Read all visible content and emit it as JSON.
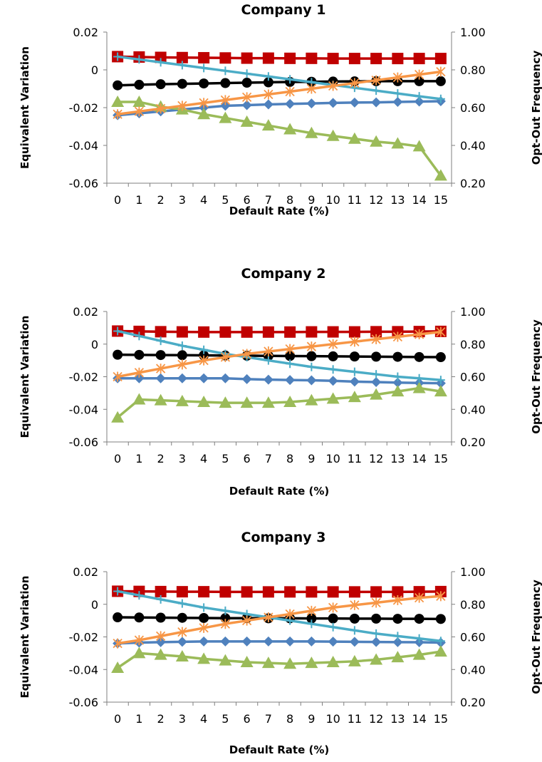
{
  "chart_data": [
    {
      "type": "line",
      "title": "Company 1",
      "xlabel": "Default Rate (%)",
      "ylabel": "Equivalent Variation",
      "y2label": "Opt-Out Frequency",
      "categories": [
        "0",
        "1",
        "2",
        "3",
        "4",
        "5",
        "6",
        "7",
        "8",
        "9",
        "10",
        "11",
        "12",
        "13",
        "14",
        "15"
      ],
      "ylim": [
        -0.06,
        0.02
      ],
      "yticks": [
        "0.02",
        "0",
        "-0.02",
        "-0.04",
        "-0.06"
      ],
      "y2lim": [
        0.2,
        1.0
      ],
      "y2ticks": [
        "1.00",
        "0.80",
        "0.60",
        "0.40",
        "0.20"
      ],
      "grid": false,
      "legend": "none",
      "series": [
        {
          "axis": "left",
          "color": "#4F81BD",
          "marker": "diamond",
          "values": [
            -0.024,
            -0.023,
            -0.022,
            -0.021,
            -0.02,
            -0.019,
            -0.0187,
            -0.0183,
            -0.018,
            -0.0178,
            -0.0175,
            -0.0173,
            -0.0172,
            -0.017,
            -0.0168,
            -0.0166
          ]
        },
        {
          "axis": "left",
          "color": "#C00000",
          "marker": "square",
          "values": [
            0.007,
            0.0068,
            0.0066,
            0.0065,
            0.0064,
            0.0063,
            0.0062,
            0.0062,
            0.0061,
            0.0061,
            0.006,
            0.006,
            0.006,
            0.006,
            0.006,
            0.006
          ]
        },
        {
          "axis": "left",
          "color": "#9BBB59",
          "marker": "triangle",
          "values": [
            -0.017,
            -0.017,
            -0.0195,
            -0.021,
            -0.0235,
            -0.0255,
            -0.0275,
            -0.0295,
            -0.0315,
            -0.0335,
            -0.035,
            -0.0365,
            -0.038,
            -0.039,
            -0.0405,
            -0.056
          ]
        },
        {
          "axis": "left",
          "color": "#000000",
          "marker": "circle",
          "values": [
            -0.0082,
            -0.0079,
            -0.0076,
            -0.0074,
            -0.0072,
            -0.007,
            -0.0068,
            -0.0066,
            -0.0064,
            -0.0063,
            -0.0062,
            -0.0061,
            -0.006,
            -0.006,
            -0.006,
            -0.006
          ]
        },
        {
          "axis": "right",
          "color": "#4BACC6",
          "marker": "plus",
          "values": [
            0.87,
            0.855,
            0.84,
            0.825,
            0.81,
            0.795,
            0.78,
            0.765,
            0.75,
            0.735,
            0.72,
            0.705,
            0.69,
            0.675,
            0.66,
            0.646
          ]
        },
        {
          "axis": "right",
          "color": "#F79646",
          "marker": "star",
          "values": [
            0.565,
            0.58,
            0.595,
            0.61,
            0.625,
            0.64,
            0.655,
            0.67,
            0.685,
            0.7,
            0.715,
            0.73,
            0.745,
            0.76,
            0.775,
            0.79
          ]
        }
      ]
    },
    {
      "type": "line",
      "title": "Company 2",
      "xlabel": "Default Rate (%)",
      "ylabel": "Equivalent Variation",
      "y2label": "Opt-Out Frequency",
      "categories": [
        "0",
        "1",
        "2",
        "3",
        "4",
        "5",
        "6",
        "7",
        "8",
        "9",
        "10",
        "11",
        "12",
        "13",
        "14",
        "15"
      ],
      "ylim": [
        -0.06,
        0.02
      ],
      "yticks": [
        "0.02",
        "0",
        "-0.02",
        "-0.04",
        "-0.06"
      ],
      "y2lim": [
        0.2,
        1.0
      ],
      "y2ticks": [
        "1.00",
        "0.80",
        "0.60",
        "0.40",
        "0.20"
      ],
      "grid": false,
      "legend": "none",
      "series": [
        {
          "axis": "left",
          "color": "#4F81BD",
          "marker": "diamond",
          "values": [
            -0.021,
            -0.021,
            -0.021,
            -0.021,
            -0.021,
            -0.021,
            -0.0215,
            -0.0218,
            -0.022,
            -0.0222,
            -0.0225,
            -0.023,
            -0.0233,
            -0.0236,
            -0.0238,
            -0.024
          ]
        },
        {
          "axis": "left",
          "color": "#C00000",
          "marker": "square",
          "values": [
            0.008,
            0.0078,
            0.0076,
            0.0075,
            0.0074,
            0.0074,
            0.0074,
            0.0074,
            0.0074,
            0.0075,
            0.0075,
            0.0075,
            0.0076,
            0.0076,
            0.0077,
            0.0078
          ]
        },
        {
          "axis": "left",
          "color": "#9BBB59",
          "marker": "triangle",
          "values": [
            -0.045,
            -0.034,
            -0.0345,
            -0.035,
            -0.0355,
            -0.036,
            -0.036,
            -0.036,
            -0.0355,
            -0.0345,
            -0.0335,
            -0.0325,
            -0.031,
            -0.029,
            -0.027,
            -0.029
          ]
        },
        {
          "axis": "left",
          "color": "#000000",
          "marker": "circle",
          "values": [
            -0.0065,
            -0.0066,
            -0.0067,
            -0.0068,
            -0.0069,
            -0.007,
            -0.0071,
            -0.0072,
            -0.0073,
            -0.0074,
            -0.0075,
            -0.0076,
            -0.0077,
            -0.0078,
            -0.0079,
            -0.008
          ]
        },
        {
          "axis": "right",
          "color": "#4BACC6",
          "marker": "plus",
          "values": [
            0.88,
            0.85,
            0.82,
            0.79,
            0.765,
            0.74,
            0.72,
            0.7,
            0.68,
            0.66,
            0.645,
            0.63,
            0.615,
            0.6,
            0.59,
            0.58
          ]
        },
        {
          "axis": "right",
          "color": "#F79646",
          "marker": "star",
          "values": [
            0.6,
            0.625,
            0.65,
            0.675,
            0.7,
            0.72,
            0.74,
            0.755,
            0.77,
            0.785,
            0.8,
            0.815,
            0.83,
            0.845,
            0.86,
            0.875
          ]
        }
      ]
    },
    {
      "type": "line",
      "title": "Company 3",
      "xlabel": "Default Rate (%)",
      "ylabel": "Equivalent Variation",
      "y2label": "Opt-Out Frequency",
      "categories": [
        "0",
        "1",
        "2",
        "3",
        "4",
        "5",
        "6",
        "7",
        "8",
        "9",
        "10",
        "11",
        "12",
        "13",
        "14",
        "15"
      ],
      "ylim": [
        -0.06,
        0.02
      ],
      "yticks": [
        "0.02",
        "0",
        "-0.02",
        "-0.04",
        "-0.06"
      ],
      "y2lim": [
        0.2,
        1.0
      ],
      "y2ticks": [
        "1.00",
        "0.80",
        "0.60",
        "0.40",
        "0.20"
      ],
      "grid": false,
      "legend": "none",
      "series": [
        {
          "axis": "left",
          "color": "#4F81BD",
          "marker": "diamond",
          "values": [
            -0.024,
            -0.0235,
            -0.0232,
            -0.023,
            -0.0228,
            -0.0228,
            -0.0228,
            -0.0228,
            -0.0228,
            -0.0228,
            -0.0229,
            -0.023,
            -0.0231,
            -0.0232,
            -0.0233,
            -0.0235
          ]
        },
        {
          "axis": "left",
          "color": "#C00000",
          "marker": "square",
          "values": [
            0.008,
            0.0079,
            0.0078,
            0.0077,
            0.0077,
            0.0076,
            0.0076,
            0.0076,
            0.0076,
            0.0076,
            0.0076,
            0.0076,
            0.0076,
            0.0076,
            0.0077,
            0.0078
          ]
        },
        {
          "axis": "left",
          "color": "#9BBB59",
          "marker": "triangle",
          "values": [
            -0.039,
            -0.03,
            -0.031,
            -0.032,
            -0.0335,
            -0.0345,
            -0.0355,
            -0.036,
            -0.0365,
            -0.036,
            -0.0355,
            -0.035,
            -0.034,
            -0.0325,
            -0.031,
            -0.029
          ]
        },
        {
          "axis": "left",
          "color": "#000000",
          "marker": "circle",
          "values": [
            -0.008,
            -0.0081,
            -0.0082,
            -0.0083,
            -0.0084,
            -0.0085,
            -0.0085,
            -0.0086,
            -0.0086,
            -0.0087,
            -0.0087,
            -0.0088,
            -0.0088,
            -0.0089,
            -0.0089,
            -0.009
          ]
        },
        {
          "axis": "right",
          "color": "#4BACC6",
          "marker": "plus",
          "values": [
            0.88,
            0.855,
            0.83,
            0.805,
            0.78,
            0.76,
            0.74,
            0.72,
            0.7,
            0.68,
            0.66,
            0.64,
            0.62,
            0.605,
            0.59,
            0.575
          ]
        },
        {
          "axis": "right",
          "color": "#F79646",
          "marker": "star",
          "values": [
            0.56,
            0.58,
            0.605,
            0.63,
            0.655,
            0.68,
            0.7,
            0.72,
            0.74,
            0.76,
            0.78,
            0.795,
            0.81,
            0.825,
            0.84,
            0.85
          ]
        }
      ]
    }
  ]
}
